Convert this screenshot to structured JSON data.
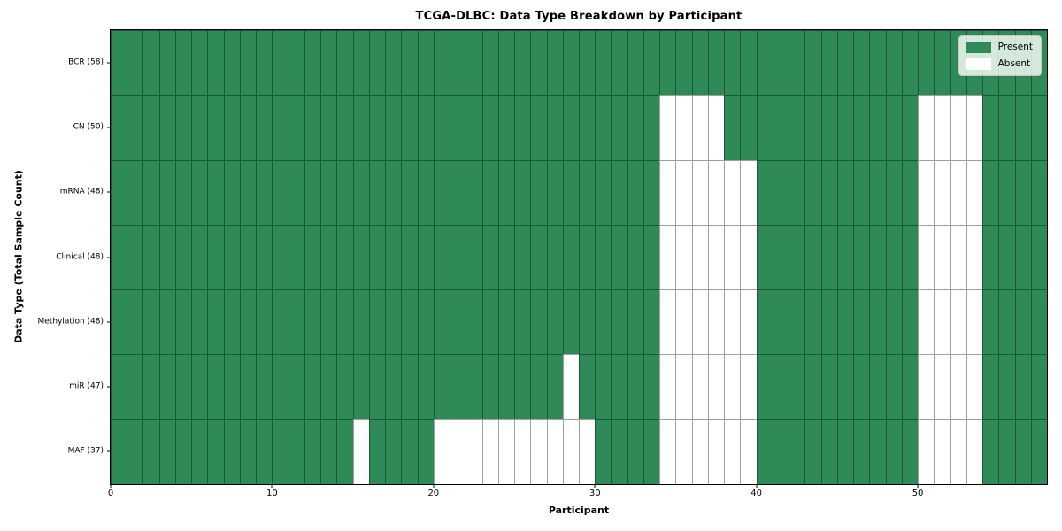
{
  "title": "TCGA-DLBC: Data Type Breakdown by Participant",
  "colors": {
    "present": "#2e8b57",
    "absent": "#ffffff",
    "cell_edge": "rgba(0,0,0,0.38)",
    "spine": "#000000",
    "legend_bg": "rgba(255,255,255,0.8)"
  },
  "chart_data": {
    "type": "heatmap",
    "title": "TCGA-DLBC: Data Type Breakdown by Participant",
    "xlabel": "Participant",
    "ylabel": "Data Type (Total Sample Count)",
    "n_participants": 58,
    "x_ticks": [
      0,
      10,
      20,
      30,
      40,
      50
    ],
    "xlim": [
      0,
      58
    ],
    "grid": true,
    "legend": [
      "Present",
      "Absent"
    ],
    "legend_position": "upper right",
    "cell_values": {
      "present": 1,
      "absent": 0
    },
    "rows": [
      {
        "name": "BCR",
        "count": 58,
        "absent_participants": []
      },
      {
        "name": "CN",
        "count": 50,
        "absent_participants": [
          34,
          35,
          36,
          37,
          50,
          51,
          52,
          53
        ]
      },
      {
        "name": "mRNA",
        "count": 48,
        "absent_participants": [
          34,
          35,
          36,
          37,
          38,
          39,
          50,
          51,
          52,
          53
        ]
      },
      {
        "name": "Clinical",
        "count": 48,
        "absent_participants": [
          34,
          35,
          36,
          37,
          38,
          39,
          50,
          51,
          52,
          53
        ]
      },
      {
        "name": "Methylation",
        "count": 48,
        "absent_participants": [
          34,
          35,
          36,
          37,
          38,
          39,
          50,
          51,
          52,
          53
        ]
      },
      {
        "name": "miR",
        "count": 47,
        "absent_participants": [
          28,
          34,
          35,
          36,
          37,
          38,
          39,
          50,
          51,
          52,
          53
        ]
      },
      {
        "name": "MAF",
        "count": 37,
        "absent_participants": [
          15,
          20,
          21,
          22,
          23,
          24,
          25,
          26,
          27,
          28,
          29,
          34,
          35,
          36,
          37,
          38,
          39,
          50,
          51,
          52,
          53
        ]
      }
    ],
    "y_tick_label_format": "{name} ({count})"
  }
}
